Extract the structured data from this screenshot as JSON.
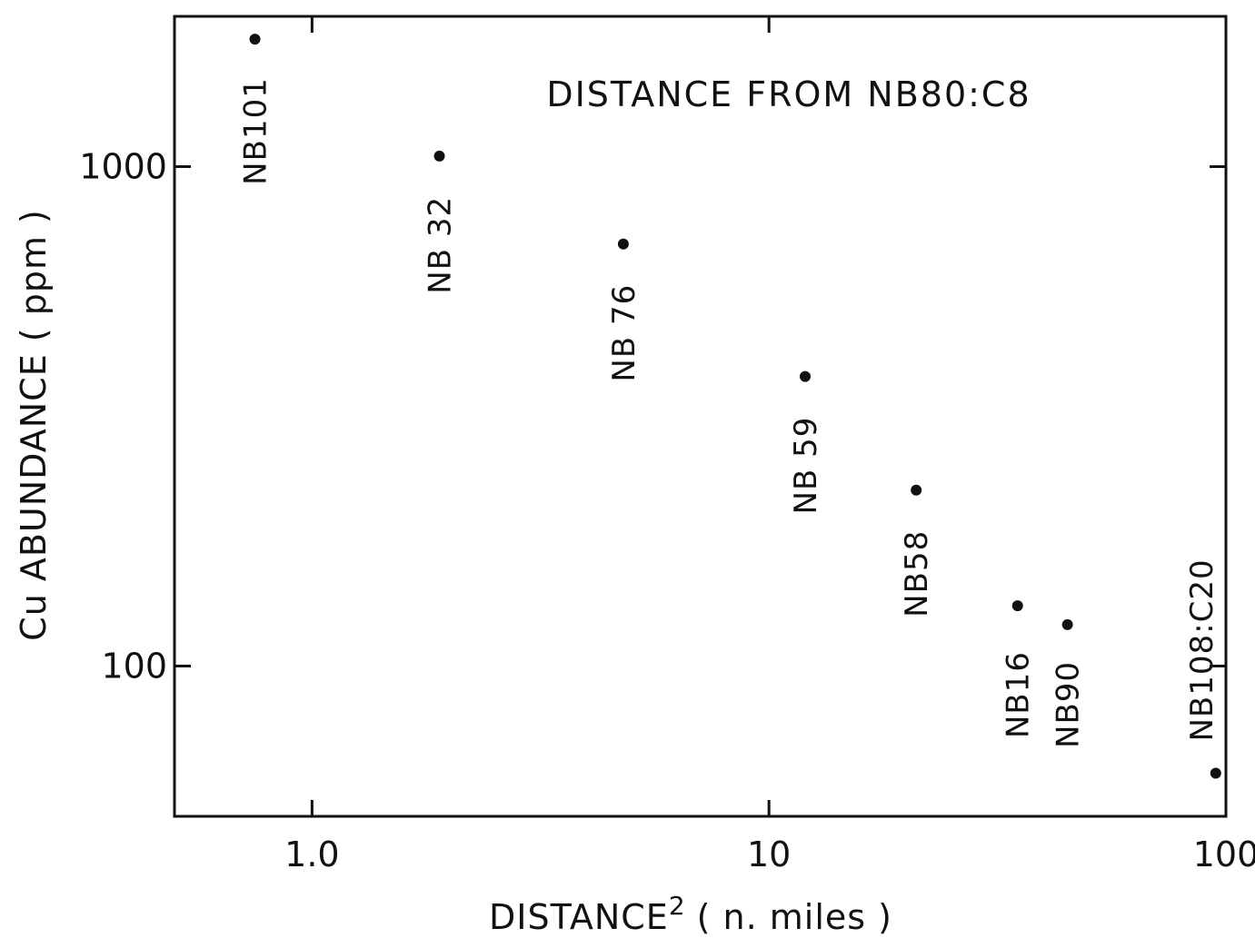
{
  "chart_data": {
    "type": "scatter",
    "title": "",
    "annotation": "DISTANCE   FROM   NB80:C8",
    "xlabel_main": "DISTANCE",
    "xlabel_sup": "2",
    "xlabel_rest": "( n. miles )",
    "ylabel": "Cu  ABUNDANCE  ( ppm )",
    "xscale": "log",
    "yscale": "log",
    "xlim": [
      0.5,
      100
    ],
    "ylim": [
      50,
      2000
    ],
    "x_ticks": [
      {
        "value": 1,
        "label": "1.0"
      },
      {
        "value": 10,
        "label": "10"
      },
      {
        "value": 100,
        "label": "100"
      }
    ],
    "y_ticks": [
      {
        "value": 100,
        "label": "100"
      },
      {
        "value": 1000,
        "label": "1000"
      }
    ],
    "grid": false,
    "points": [
      {
        "label": "NB101",
        "x": 0.75,
        "y": 1800
      },
      {
        "label": "NB 32",
        "x": 1.9,
        "y": 1050
      },
      {
        "label": "NB 76",
        "x": 4.8,
        "y": 700
      },
      {
        "label": "NB 59",
        "x": 12,
        "y": 380
      },
      {
        "label": "NB58",
        "x": 21,
        "y": 225
      },
      {
        "label": "NB16",
        "x": 35,
        "y": 132
      },
      {
        "label": "NB90",
        "x": 45,
        "y": 121
      },
      {
        "label": "NB108:C20",
        "x": 95,
        "y": 61
      }
    ]
  }
}
